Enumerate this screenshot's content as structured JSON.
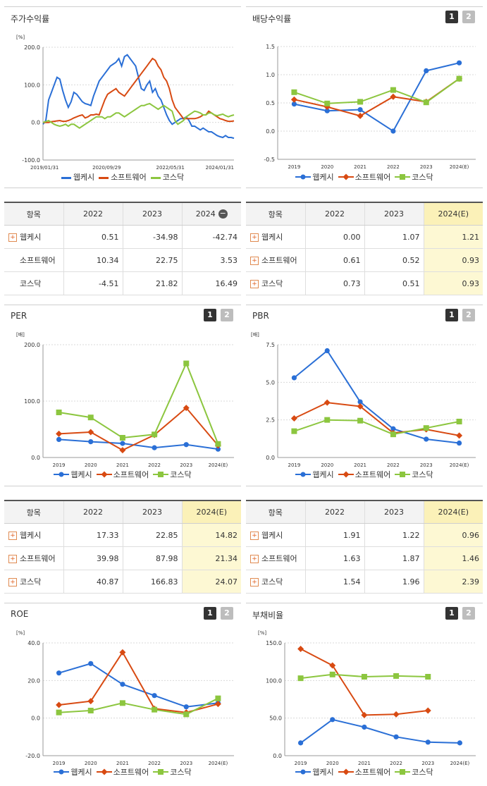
{
  "colors": {
    "wepk": "#2a6fd6",
    "soft": "#d84a12",
    "kosdaq": "#8cc63f",
    "highlight": "#fdf8d3"
  },
  "legend": [
    "웹케시",
    "소프트웨어",
    "코스닥"
  ],
  "pager": [
    "1",
    "2"
  ],
  "stock": {
    "title": "주가수익률",
    "chart_data": {
      "type": "line",
      "unit": "[%]",
      "ylim": [
        -100,
        200
      ],
      "yticks": [
        "200.0",
        "100.0",
        "0.0",
        "-100.0"
      ],
      "xticks": [
        "2019/01/31",
        "2020/09/29",
        "2022/05/31",
        "2024/01/31"
      ],
      "series": [
        {
          "name": "웹케시",
          "values": [
            -5,
            5,
            60,
            80,
            100,
            120,
            115,
            85,
            60,
            40,
            55,
            80,
            75,
            65,
            55,
            50,
            48,
            45,
            70,
            90,
            110,
            120,
            130,
            140,
            150,
            155,
            160,
            170,
            150,
            175,
            180,
            170,
            160,
            150,
            120,
            90,
            85,
            100,
            110,
            80,
            90,
            70,
            60,
            40,
            20,
            5,
            -5,
            0,
            5,
            10,
            10,
            15,
            5,
            -10,
            -10,
            -15,
            -20,
            -15,
            -20,
            -25,
            -25,
            -30,
            -35,
            -38,
            -40,
            -35,
            -40,
            -40,
            -42
          ]
        },
        {
          "name": "소프트웨어",
          "values": [
            0,
            0,
            0,
            2,
            3,
            4,
            5,
            3,
            3,
            5,
            8,
            12,
            15,
            18,
            20,
            12,
            15,
            20,
            20,
            22,
            20,
            40,
            60,
            75,
            80,
            85,
            90,
            80,
            75,
            70,
            80,
            90,
            100,
            110,
            120,
            130,
            140,
            150,
            160,
            170,
            165,
            150,
            140,
            120,
            110,
            90,
            60,
            40,
            30,
            20,
            10,
            10,
            10,
            10,
            10,
            12,
            15,
            20,
            20,
            30,
            25,
            20,
            15,
            10,
            8,
            5,
            3,
            3,
            4
          ]
        },
        {
          "name": "코스닥",
          "values": [
            0,
            2,
            5,
            0,
            -5,
            -8,
            -10,
            -8,
            -5,
            -10,
            -5,
            -5,
            -10,
            -15,
            -10,
            -5,
            0,
            5,
            10,
            15,
            15,
            15,
            10,
            15,
            15,
            20,
            25,
            25,
            20,
            15,
            20,
            25,
            30,
            35,
            40,
            45,
            45,
            48,
            50,
            45,
            40,
            35,
            40,
            45,
            40,
            35,
            30,
            5,
            -5,
            0,
            5,
            15,
            20,
            25,
            30,
            28,
            25,
            20,
            20,
            25,
            25,
            20,
            18,
            20,
            22,
            18,
            15,
            18,
            20
          ]
        }
      ]
    },
    "table": {
      "head": [
        "항목",
        "2022",
        "2023",
        "2024"
      ],
      "rows": [
        {
          "name": "웹케시",
          "plus": true,
          "v": [
            "0.51",
            "-34.98",
            "-42.74"
          ]
        },
        {
          "name": "소프트웨어",
          "plus": false,
          "v": [
            "10.34",
            "22.75",
            "3.53"
          ]
        },
        {
          "name": "코스닥",
          "plus": false,
          "v": [
            "-4.51",
            "21.82",
            "16.49"
          ]
        }
      ]
    }
  },
  "dividend": {
    "title": "배당수익률",
    "chart_data": {
      "type": "line",
      "ylim": [
        -0.5,
        1.5
      ],
      "yticks": [
        "1.5",
        "1.0",
        "0.5",
        "0.0",
        "-0.5"
      ],
      "categories": [
        "2019",
        "2020",
        "2021",
        "2022",
        "2023",
        "2024(E)"
      ],
      "series": [
        {
          "name": "웹케시",
          "values": [
            0.48,
            0.36,
            0.38,
            0.0,
            1.07,
            1.21
          ]
        },
        {
          "name": "소프트웨어",
          "values": [
            0.56,
            0.43,
            0.27,
            0.61,
            0.52,
            0.93
          ]
        },
        {
          "name": "코스닥",
          "values": [
            0.69,
            0.49,
            0.52,
            0.73,
            0.51,
            0.93
          ]
        }
      ]
    },
    "table": {
      "head": [
        "항목",
        "2022",
        "2023",
        "2024(E)"
      ],
      "rows": [
        {
          "name": "웹케시",
          "v": [
            "0.00",
            "1.07",
            "1.21"
          ]
        },
        {
          "name": "소프트웨어",
          "v": [
            "0.61",
            "0.52",
            "0.93"
          ]
        },
        {
          "name": "코스닥",
          "v": [
            "0.73",
            "0.51",
            "0.93"
          ]
        }
      ]
    }
  },
  "per": {
    "title": "PER",
    "chart_data": {
      "type": "line",
      "unit": "[배]",
      "ylim": [
        0,
        200
      ],
      "yticks": [
        "200.0",
        "100.0",
        "0.0"
      ],
      "categories": [
        "2019",
        "2020",
        "2021",
        "2022",
        "2023",
        "2024(E)"
      ],
      "series": [
        {
          "name": "웹케시",
          "values": [
            32,
            28,
            25,
            17.33,
            22.85,
            14.82
          ]
        },
        {
          "name": "소프트웨어",
          "values": [
            42,
            45,
            13,
            39.98,
            87.98,
            21.34
          ]
        },
        {
          "name": "코스닥",
          "values": [
            80,
            71,
            35,
            40.87,
            166.83,
            24.07
          ]
        }
      ]
    },
    "table": {
      "head": [
        "항목",
        "2022",
        "2023",
        "2024(E)"
      ],
      "rows": [
        {
          "name": "웹케시",
          "v": [
            "17.33",
            "22.85",
            "14.82"
          ]
        },
        {
          "name": "소프트웨어",
          "v": [
            "39.98",
            "87.98",
            "21.34"
          ]
        },
        {
          "name": "코스닥",
          "v": [
            "40.87",
            "166.83",
            "24.07"
          ]
        }
      ]
    }
  },
  "pbr": {
    "title": "PBR",
    "chart_data": {
      "type": "line",
      "unit": "[배]",
      "ylim": [
        0,
        7.5
      ],
      "yticks": [
        "7.5",
        "5.0",
        "2.5",
        "0.0"
      ],
      "categories": [
        "2019",
        "2020",
        "2021",
        "2022",
        "2023",
        "2024(E)"
      ],
      "series": [
        {
          "name": "웹케시",
          "values": [
            5.3,
            7.1,
            3.7,
            1.91,
            1.22,
            0.96
          ]
        },
        {
          "name": "소프트웨어",
          "values": [
            2.6,
            3.65,
            3.4,
            1.63,
            1.87,
            1.46
          ]
        },
        {
          "name": "코스닥",
          "values": [
            1.75,
            2.5,
            2.45,
            1.54,
            1.96,
            2.39
          ]
        }
      ]
    },
    "table": {
      "head": [
        "항목",
        "2022",
        "2023",
        "2024(E)"
      ],
      "rows": [
        {
          "name": "웹케시",
          "v": [
            "1.91",
            "1.22",
            "0.96"
          ]
        },
        {
          "name": "소프트웨어",
          "v": [
            "1.63",
            "1.87",
            "1.46"
          ]
        },
        {
          "name": "코스닥",
          "v": [
            "1.54",
            "1.96",
            "2.39"
          ]
        }
      ]
    }
  },
  "roe": {
    "title": "ROE",
    "chart_data": {
      "type": "line",
      "unit": "[%]",
      "ylim": [
        -20,
        40
      ],
      "yticks": [
        "40.0",
        "20.0",
        "0.0",
        "-20.0"
      ],
      "categories": [
        "2019",
        "2020",
        "2021",
        "2022",
        "2023",
        "2024(E)"
      ],
      "series": [
        {
          "name": "웹케시",
          "values": [
            24,
            29,
            18,
            12,
            6,
            8
          ]
        },
        {
          "name": "소프트웨어",
          "values": [
            7,
            9,
            35,
            5,
            3,
            7.5
          ]
        },
        {
          "name": "코스닥",
          "values": [
            3,
            4,
            8,
            4.5,
            2,
            10.5
          ]
        }
      ]
    }
  },
  "debt": {
    "title": "부채비율",
    "chart_data": {
      "type": "line",
      "unit": "[%]",
      "ylim": [
        0,
        150
      ],
      "yticks": [
        "150.0",
        "100.0",
        "50.0",
        "0.0"
      ],
      "categories": [
        "2019",
        "2020",
        "2021",
        "2022",
        "2023",
        "2024(E)"
      ],
      "series": [
        {
          "name": "웹케시",
          "values": [
            17,
            48,
            38,
            25,
            18,
            17
          ]
        },
        {
          "name": "소프트웨어",
          "values": [
            142,
            120,
            54,
            55,
            60,
            null
          ]
        },
        {
          "name": "코스닥",
          "values": [
            103,
            108,
            105,
            106,
            105,
            null
          ]
        }
      ]
    }
  }
}
